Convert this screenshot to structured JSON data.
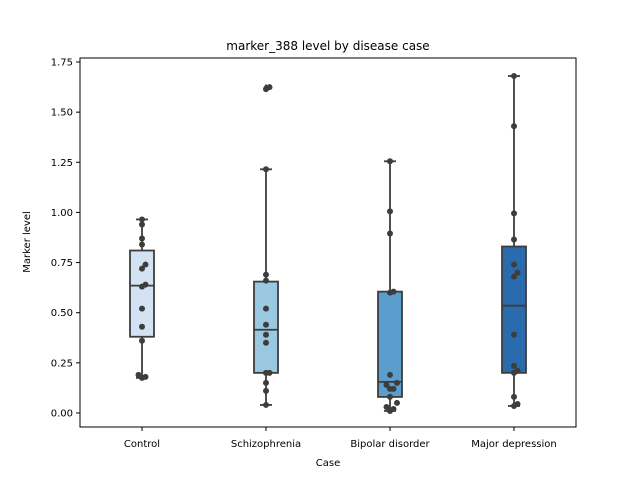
{
  "chart_data": {
    "type": "box",
    "title": "marker_388 level by disease case",
    "xlabel": "Case",
    "ylabel": "Marker level",
    "ylim": [
      -0.07,
      1.77
    ],
    "yticks": [
      "0.00",
      "0.25",
      "0.50",
      "0.75",
      "1.00",
      "1.25",
      "1.50",
      "1.75"
    ],
    "grid": false,
    "categories": [
      "Control",
      "Schizophrenia",
      "Bipolar disorder",
      "Major depression"
    ],
    "box_colors": [
      "#d4e3f3",
      "#9ac8e0",
      "#5a9ecd",
      "#2a6bad"
    ],
    "edge_color": "#3d3d3d",
    "point_color": "#3d3d3d",
    "boxes": [
      {
        "q1": 0.38,
        "median": 0.635,
        "q3": 0.81,
        "whisker_low": 0.175,
        "whisker_high": 0.965,
        "outliers": []
      },
      {
        "q1": 0.2,
        "median": 0.415,
        "q3": 0.655,
        "whisker_low": 0.04,
        "whisker_high": 1.215,
        "outliers": [
          1.615,
          1.625
        ]
      },
      {
        "q1": 0.08,
        "median": 0.155,
        "q3": 0.605,
        "whisker_low": 0.01,
        "whisker_high": 1.255,
        "outliers": []
      },
      {
        "q1": 0.2,
        "median": 0.535,
        "q3": 0.83,
        "whisker_low": 0.035,
        "whisker_high": 1.68,
        "outliers": []
      }
    ],
    "points": [
      [
        0.965,
        0.94,
        0.87,
        0.84,
        0.74,
        0.72,
        0.64,
        0.63,
        0.52,
        0.43,
        0.36,
        0.19,
        0.18,
        0.175
      ],
      [
        1.625,
        1.615,
        1.215,
        0.69,
        0.66,
        0.52,
        0.44,
        0.39,
        0.35,
        0.2,
        0.2,
        0.15,
        0.11,
        0.04
      ],
      [
        1.255,
        1.005,
        0.895,
        0.605,
        0.6,
        0.19,
        0.15,
        0.14,
        0.12,
        0.12,
        0.08,
        0.05,
        0.03,
        0.02,
        0.01
      ],
      [
        1.68,
        1.43,
        0.995,
        0.865,
        0.74,
        0.7,
        0.68,
        0.39,
        0.235,
        0.21,
        0.2,
        0.08,
        0.045,
        0.035
      ]
    ]
  }
}
